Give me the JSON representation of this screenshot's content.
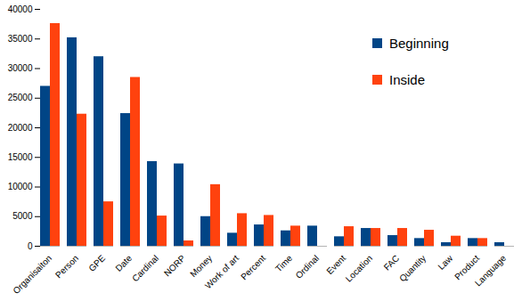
{
  "chart_data": {
    "type": "bar",
    "categories": [
      "Organisaiton",
      "Person",
      "GPE",
      "Date",
      "Cardinal",
      "NORP",
      "Money",
      "Work of art",
      "Percent",
      "Time",
      "Ordinal",
      "Event",
      "Location",
      "FAC",
      "Quantity",
      "Law",
      "Product",
      "Language"
    ],
    "series": [
      {
        "name": "Beginning",
        "color": "#004586",
        "values": [
          27000,
          35200,
          32000,
          22400,
          14300,
          13900,
          5000,
          2200,
          3600,
          2600,
          3400,
          1600,
          3000,
          1800,
          1300,
          600,
          1300,
          600
        ]
      },
      {
        "name": "Inside",
        "color": "#ff420e",
        "values": [
          37600,
          22300,
          7500,
          28500,
          5100,
          900,
          10400,
          5500,
          5200,
          3400,
          0,
          3300,
          3000,
          3000,
          2700,
          1700,
          1300,
          0
        ]
      }
    ],
    "ylim": [
      0,
      40000
    ],
    "yticks": [
      0,
      5000,
      10000,
      15000,
      20000,
      25000,
      30000,
      35000,
      40000
    ],
    "grid": false,
    "legend": "top-right"
  }
}
